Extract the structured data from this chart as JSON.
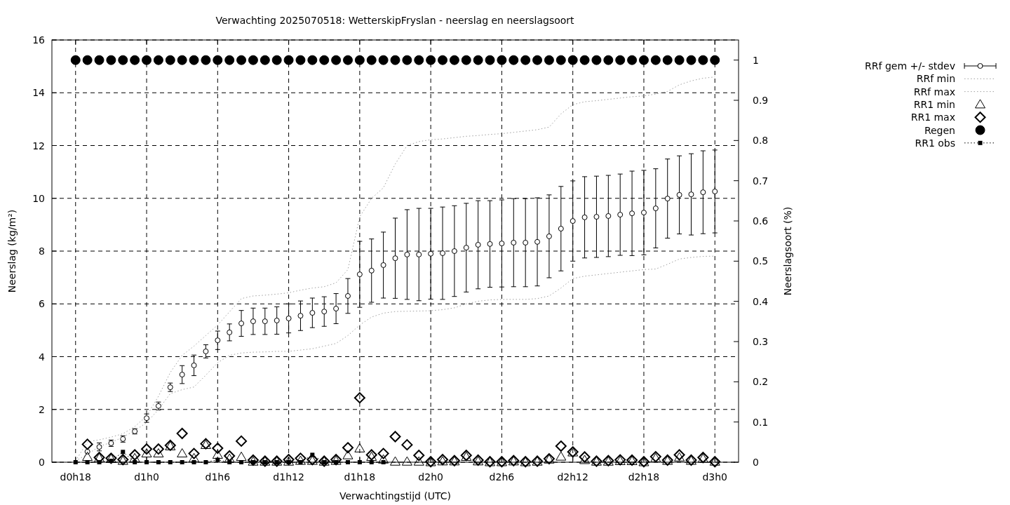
{
  "chart_data": {
    "type": "scatter",
    "title": "Verwachting 2025070518: WetterskipFryslan - neerslag en neerslagsoort",
    "xlabel": "Verwachtingstijd (UTC)",
    "ylabel": "Neerslag (kg/m²)",
    "y2label": "Neerslagsoort (%)",
    "categories": [
      "d0h18",
      null,
      null,
      null,
      null,
      null,
      "d1h0",
      null,
      null,
      null,
      null,
      null,
      "d1h6",
      null,
      null,
      null,
      null,
      null,
      "d1h12",
      null,
      null,
      null,
      null,
      null,
      "d1h18",
      null,
      null,
      null,
      null,
      null,
      "d2h0",
      null,
      null,
      null,
      null,
      null,
      "d2h6",
      null,
      null,
      null,
      null,
      null,
      "d2h12",
      null,
      null,
      null,
      null,
      null,
      "d2h18",
      null,
      null,
      null,
      null,
      null,
      "d3h0"
    ],
    "ylim": [
      0,
      16
    ],
    "yticks": [
      0,
      2,
      4,
      6,
      8,
      10,
      12,
      14,
      16
    ],
    "y2lim": [
      0,
      1.05
    ],
    "y2ticks": [
      0,
      0.1,
      0.2,
      0.3,
      0.4,
      0.5,
      0.6,
      0.7,
      0.8,
      0.9,
      1
    ],
    "grid": true,
    "legend": "top right",
    "series": [
      {
        "name": "RRf gem +/- stdev",
        "marker": "circle",
        "color": "#000000",
        "values": [
          null,
          0.4,
          0.58,
          0.72,
          0.88,
          1.17,
          1.67,
          2.13,
          2.84,
          3.32,
          3.67,
          4.2,
          4.62,
          4.92,
          5.26,
          5.34,
          5.34,
          5.37,
          5.45,
          5.55,
          5.66,
          5.71,
          5.82,
          6.3,
          7.12,
          7.26,
          7.47,
          7.73,
          7.87,
          7.87,
          7.9,
          7.92,
          8.0,
          8.13,
          8.24,
          8.27,
          8.29,
          8.32,
          8.32,
          8.35,
          8.56,
          8.85,
          9.14,
          9.28,
          9.3,
          9.33,
          9.38,
          9.43,
          9.46,
          9.62,
          9.99,
          10.13,
          10.15,
          10.23,
          10.26
        ],
        "errors": [
          null,
          null,
          0.15,
          0.12,
          0.12,
          0.1,
          0.16,
          0.15,
          0.16,
          0.34,
          0.39,
          0.25,
          0.35,
          0.32,
          0.49,
          0.5,
          0.5,
          0.52,
          0.55,
          0.56,
          0.56,
          0.56,
          0.57,
          0.66,
          1.25,
          1.2,
          1.25,
          1.52,
          1.7,
          1.75,
          1.72,
          1.75,
          1.72,
          1.68,
          1.67,
          1.64,
          1.65,
          1.67,
          1.67,
          1.67,
          1.57,
          1.6,
          1.52,
          1.54,
          1.54,
          1.54,
          1.54,
          1.6,
          1.6,
          1.5,
          1.5,
          1.48,
          1.54,
          1.57,
          1.57
        ]
      },
      {
        "name": "RRf min",
        "type": "line",
        "marker": "none",
        "line_style": "dotted",
        "color": "#a0a0a0",
        "values": [
          0.05,
          0.3,
          0.6,
          0.75,
          0.95,
          1.2,
          1.5,
          2.0,
          2.6,
          2.75,
          2.85,
          3.3,
          3.77,
          4.05,
          4.14,
          4.17,
          4.18,
          4.2,
          4.2,
          4.25,
          4.3,
          4.4,
          4.5,
          4.8,
          5.2,
          5.5,
          5.65,
          5.71,
          5.72,
          5.73,
          5.74,
          5.78,
          5.85,
          6.0,
          6.1,
          6.15,
          6.17,
          6.17,
          6.17,
          6.2,
          6.3,
          6.6,
          6.96,
          7.05,
          7.1,
          7.15,
          7.2,
          7.25,
          7.3,
          7.32,
          7.5,
          7.7,
          7.76,
          7.8,
          7.81
        ]
      },
      {
        "name": "RRf max",
        "type": "line",
        "marker": "none",
        "line_style": "dotted",
        "color": "#a0a0a0",
        "values": [
          0.05,
          0.77,
          0.85,
          0.95,
          1.08,
          1.35,
          1.75,
          2.5,
          3.4,
          4.05,
          4.4,
          4.8,
          5.2,
          5.7,
          6.2,
          6.3,
          6.33,
          6.37,
          6.42,
          6.52,
          6.6,
          6.65,
          6.8,
          7.3,
          9.3,
          10.0,
          10.4,
          11.3,
          12.0,
          12.15,
          12.22,
          12.25,
          12.3,
          12.35,
          12.38,
          12.42,
          12.45,
          12.5,
          12.55,
          12.6,
          12.7,
          13.2,
          13.55,
          13.66,
          13.7,
          13.75,
          13.8,
          13.85,
          13.88,
          13.95,
          14.05,
          14.3,
          14.45,
          14.55,
          14.6
        ]
      },
      {
        "name": "RR1 min",
        "marker": "triangle",
        "color": "#000000",
        "values": [
          null,
          0.2,
          0.15,
          0.12,
          0.05,
          0.15,
          0.33,
          0.33,
          0.6,
          0.33,
          0.15,
          0.65,
          0.28,
          0.13,
          0.2,
          0.02,
          0.02,
          0.02,
          0.02,
          0.05,
          0.05,
          0.02,
          0.05,
          0.26,
          0.52,
          0.2,
          0.1,
          0.02,
          0.02,
          0.02,
          0,
          0.03,
          0.03,
          0.2,
          0.03,
          0,
          0,
          0.03,
          0,
          0.02,
          0.1,
          0.21,
          0.37,
          0.08,
          0.02,
          0.02,
          0.04,
          0.04,
          0,
          0.15,
          0.05,
          0.18,
          0.05,
          0.13,
          0.02
        ]
      },
      {
        "name": "RR1 max",
        "marker": "diamond",
        "color": "#000000",
        "values": [
          null,
          0.68,
          0.18,
          0.15,
          0.1,
          0.28,
          0.5,
          0.5,
          0.64,
          1.09,
          0.33,
          0.7,
          0.53,
          0.24,
          0.8,
          0.08,
          0.04,
          0.04,
          0.1,
          0.15,
          0.1,
          0.04,
          0.1,
          0.55,
          2.44,
          0.28,
          0.33,
          0.97,
          0.66,
          0.26,
          0.02,
          0.1,
          0.06,
          0.26,
          0.08,
          0.02,
          0.02,
          0.06,
          0.02,
          0.04,
          0.13,
          0.61,
          0.39,
          0.2,
          0.04,
          0.06,
          0.09,
          0.08,
          0.02,
          0.21,
          0.08,
          0.28,
          0.08,
          0.18,
          0.02
        ]
      },
      {
        "name": "Regen",
        "marker": "circle",
        "axis": "y2",
        "color": "#000000",
        "values": [
          1,
          1,
          1,
          1,
          1,
          1,
          1,
          1,
          1,
          1,
          1,
          1,
          1,
          1,
          1,
          1,
          1,
          1,
          1,
          1,
          1,
          1,
          1,
          1,
          1,
          1,
          1,
          1,
          1,
          1,
          1,
          1,
          1,
          1,
          1,
          1,
          1,
          1,
          1,
          1,
          1,
          1,
          1,
          1,
          1,
          1,
          1,
          1,
          1,
          1,
          1,
          1,
          1,
          1,
          1
        ]
      },
      {
        "name": "RR1 obs",
        "type": "line",
        "marker": "square",
        "line_style": "dotted",
        "color": "#000000",
        "values": [
          0,
          0,
          0,
          0.05,
          0.39,
          0,
          0,
          0,
          0,
          0,
          0,
          0,
          0.09,
          0,
          0,
          0,
          0,
          0,
          0,
          0,
          0.28,
          0,
          0,
          0,
          0,
          0,
          0,
          null,
          null,
          null,
          null,
          null,
          null,
          null,
          null,
          null,
          null,
          null,
          null,
          null,
          null,
          null,
          null,
          null,
          null,
          null,
          null,
          null,
          null,
          null,
          null,
          null,
          null,
          null,
          null
        ]
      }
    ]
  }
}
